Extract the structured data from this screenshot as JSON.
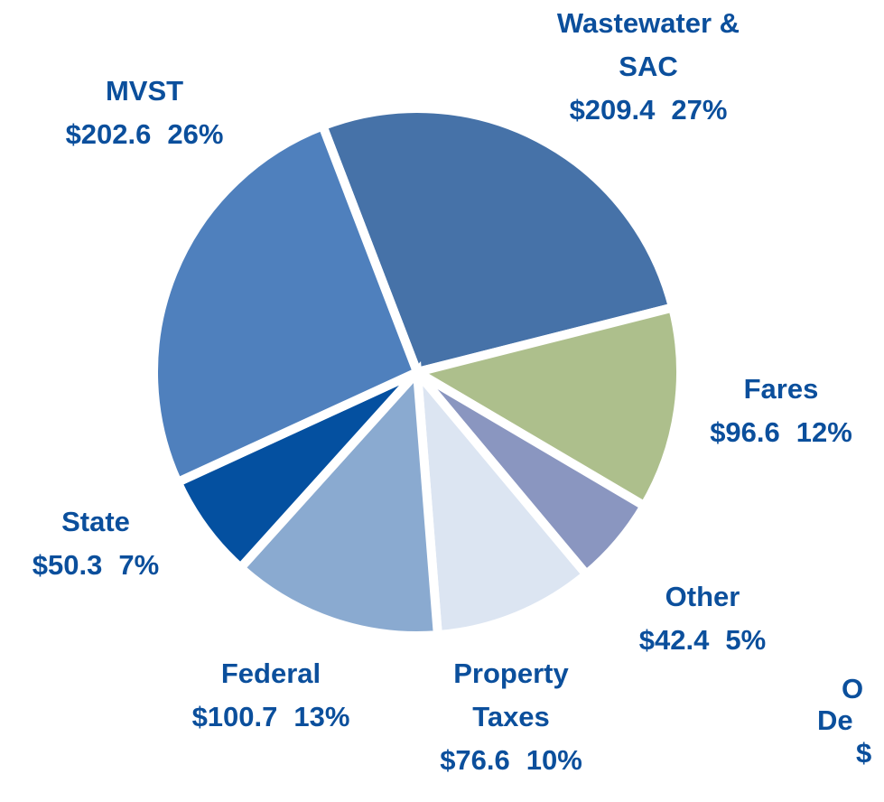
{
  "chart_data": {
    "type": "pie",
    "categories": [
      "Wastewater & SAC",
      "Fares",
      "Other",
      "Property Taxes",
      "Federal",
      "State",
      "MVST"
    ],
    "values": [
      209.4,
      96.6,
      42.4,
      76.6,
      100.7,
      50.3,
      202.6
    ],
    "value_labels": [
      "$209.4",
      "$96.6",
      "$42.4",
      "$76.6",
      "$100.7",
      "$50.3",
      "$202.6"
    ],
    "percent_labels": [
      "27%",
      "12%",
      "5%",
      "10%",
      "13%",
      "7%",
      "26%"
    ],
    "colors": [
      "#4672a8",
      "#adbf8c",
      "#8a96c0",
      "#dce5f2",
      "#8aaad0",
      "#0450a0",
      "#4f80bd"
    ],
    "annotations": [
      "O",
      "De",
      "$"
    ]
  }
}
